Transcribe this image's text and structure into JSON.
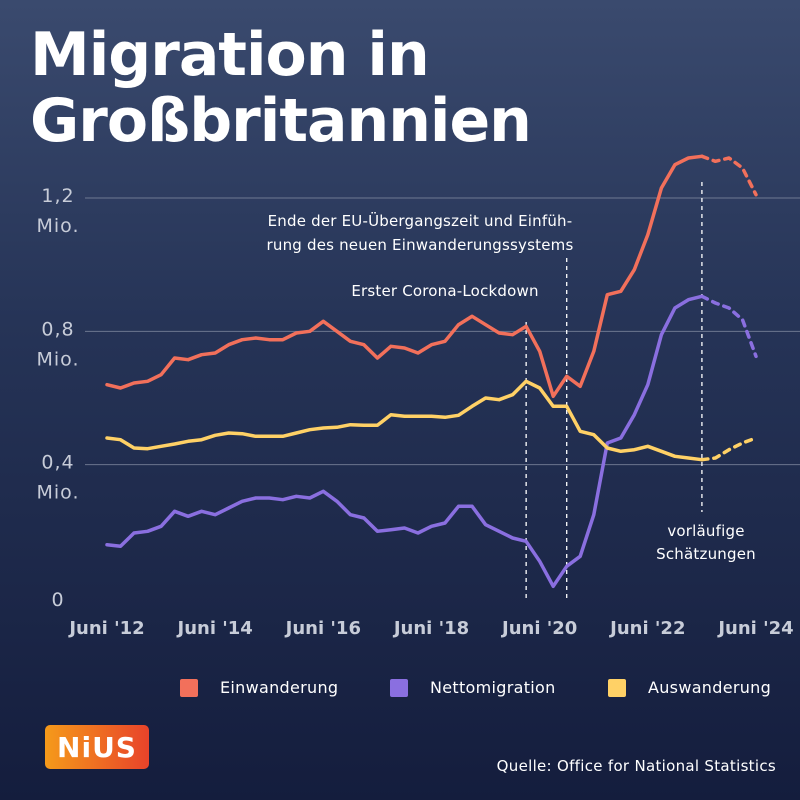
{
  "title_lines": [
    "Migration in",
    "Großbritannien"
  ],
  "chart_data": {
    "type": "line",
    "title": "Migration in Großbritannien",
    "x_tick_labels": [
      "Juni '12",
      "Juni '14",
      "Juni '16",
      "Juni '18",
      "Juni '20",
      "Juni '22",
      "Juni '24"
    ],
    "x_tick_years": [
      2012.5,
      2014.5,
      2016.5,
      2018.5,
      2020.5,
      2022.5,
      2024.5
    ],
    "y_tick_labels": [
      {
        "value": 0,
        "lines": [
          "0"
        ]
      },
      {
        "value": 0.4,
        "lines": [
          "0,4",
          "Mio."
        ]
      },
      {
        "value": 0.8,
        "lines": [
          "0,8",
          "Mio."
        ]
      },
      {
        "value": 1.2,
        "lines": [
          "1,2",
          "Mio."
        ]
      }
    ],
    "ylim": [
      0,
      1.2
    ],
    "xlim": [
      2012.5,
      2024.5
    ],
    "grid": true,
    "legend_position": "bottom",
    "series": [
      {
        "name": "Einwanderung",
        "color": "#f2705b",
        "x": [
          2012.5,
          2012.75,
          2013.0,
          2013.25,
          2013.5,
          2013.75,
          2014.0,
          2014.25,
          2014.5,
          2014.75,
          2015.0,
          2015.25,
          2015.5,
          2015.75,
          2016.0,
          2016.25,
          2016.5,
          2016.75,
          2017.0,
          2017.25,
          2017.5,
          2017.75,
          2018.0,
          2018.25,
          2018.5,
          2018.75,
          2019.0,
          2019.25,
          2019.5,
          2019.75,
          2020.0,
          2020.25,
          2020.5,
          2020.75,
          2021.0,
          2021.25,
          2021.5,
          2021.75,
          2022.0,
          2022.25,
          2022.5,
          2022.75,
          2023.0,
          2023.25,
          2023.5
        ],
        "values": [
          0.64,
          0.63,
          0.645,
          0.65,
          0.67,
          0.72,
          0.715,
          0.73,
          0.735,
          0.76,
          0.775,
          0.78,
          0.775,
          0.775,
          0.795,
          0.8,
          0.83,
          0.8,
          0.77,
          0.76,
          0.72,
          0.755,
          0.75,
          0.735,
          0.76,
          0.77,
          0.82,
          0.845,
          0.82,
          0.795,
          0.79,
          0.815,
          0.74,
          0.605,
          0.665,
          0.635,
          0.74,
          0.91,
          0.92,
          0.985,
          1.09,
          1.23,
          1.3,
          1.32,
          1.325
        ],
        "proj_x": [
          2023.5,
          2023.75,
          2024.0,
          2024.25,
          2024.5
        ],
        "proj_values": [
          1.325,
          1.31,
          1.32,
          1.29,
          1.21
        ]
      },
      {
        "name": "Nettomigration",
        "color": "#8a6fe0",
        "x": [
          2012.5,
          2012.75,
          2013.0,
          2013.25,
          2013.5,
          2013.75,
          2014.0,
          2014.25,
          2014.5,
          2014.75,
          2015.0,
          2015.25,
          2015.5,
          2015.75,
          2016.0,
          2016.25,
          2016.5,
          2016.75,
          2017.0,
          2017.25,
          2017.5,
          2017.75,
          2018.0,
          2018.25,
          2018.5,
          2018.75,
          2019.0,
          2019.25,
          2019.5,
          2019.75,
          2020.0,
          2020.25,
          2020.5,
          2020.75,
          2021.0,
          2021.25,
          2021.5,
          2021.75,
          2022.0,
          2022.25,
          2022.5,
          2022.75,
          2023.0,
          2023.25,
          2023.5
        ],
        "values": [
          0.16,
          0.155,
          0.195,
          0.2,
          0.215,
          0.26,
          0.245,
          0.26,
          0.25,
          0.27,
          0.29,
          0.3,
          0.3,
          0.295,
          0.305,
          0.3,
          0.32,
          0.29,
          0.25,
          0.24,
          0.2,
          0.205,
          0.21,
          0.195,
          0.215,
          0.225,
          0.275,
          0.275,
          0.22,
          0.2,
          0.18,
          0.17,
          0.11,
          0.035,
          0.095,
          0.125,
          0.25,
          0.465,
          0.48,
          0.55,
          0.64,
          0.79,
          0.87,
          0.895,
          0.905
        ],
        "proj_x": [
          2023.5,
          2023.75,
          2024.0,
          2024.25,
          2024.5
        ],
        "proj_values": [
          0.905,
          0.885,
          0.87,
          0.835,
          0.725
        ]
      },
      {
        "name": "Auswanderung",
        "color": "#ffd166",
        "x": [
          2012.5,
          2012.75,
          2013.0,
          2013.25,
          2013.5,
          2013.75,
          2014.0,
          2014.25,
          2014.5,
          2014.75,
          2015.0,
          2015.25,
          2015.5,
          2015.75,
          2016.0,
          2016.25,
          2016.5,
          2016.75,
          2017.0,
          2017.25,
          2017.5,
          2017.75,
          2018.0,
          2018.25,
          2018.5,
          2018.75,
          2019.0,
          2019.25,
          2019.5,
          2019.75,
          2020.0,
          2020.25,
          2020.5,
          2020.75,
          2021.0,
          2021.25,
          2021.5,
          2021.75,
          2022.0,
          2022.25,
          2022.5,
          2022.75,
          2023.0,
          2023.25,
          2023.5
        ],
        "values": [
          0.48,
          0.475,
          0.45,
          0.448,
          0.455,
          0.462,
          0.47,
          0.475,
          0.488,
          0.495,
          0.493,
          0.485,
          0.485,
          0.485,
          0.495,
          0.505,
          0.51,
          0.512,
          0.52,
          0.518,
          0.518,
          0.55,
          0.545,
          0.545,
          0.545,
          0.542,
          0.548,
          0.575,
          0.6,
          0.595,
          0.61,
          0.65,
          0.63,
          0.575,
          0.575,
          0.5,
          0.49,
          0.45,
          0.44,
          0.445,
          0.455,
          0.44,
          0.425,
          0.42,
          0.415
        ],
        "proj_x": [
          2023.5,
          2023.75,
          2024.0,
          2024.25,
          2024.5
        ],
        "proj_values": [
          0.415,
          0.42,
          0.445,
          0.465,
          0.48
        ]
      }
    ],
    "vlines": [
      {
        "x": 2020.25,
        "label_lines": [
          "Erster Corona-Lockdown"
        ]
      },
      {
        "x": 2021.0,
        "label_lines": [
          "Ende der EU-Übergangszeit und Einfüh-",
          "rung des neuen Einwanderungssystems"
        ]
      },
      {
        "x": 2023.5,
        "label_lines": [
          "vorläufige",
          "Schätzungen"
        ]
      }
    ]
  },
  "legend": [
    {
      "label": "Einwanderung",
      "color": "#f2705b"
    },
    {
      "label": "Nettomigration",
      "color": "#8a6fe0"
    },
    {
      "label": "Auswanderung",
      "color": "#ffd166"
    }
  ],
  "logo_text": "NiUS",
  "source": "Quelle: Office for National Statistics"
}
